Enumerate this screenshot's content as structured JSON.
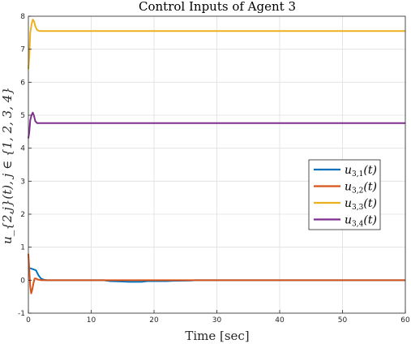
{
  "chart_data": {
    "type": "line",
    "title": "Control Inputs of Agent 3",
    "xlabel": "Time [sec]",
    "ylabel": "u_{2,j}(t), j ∈ {1, 2, 3, 4}",
    "xlim": [
      0,
      60
    ],
    "ylim": [
      -1,
      8
    ],
    "xticks": [
      0,
      10,
      20,
      30,
      40,
      50,
      60
    ],
    "yticks": [
      -1,
      0,
      1,
      2,
      3,
      4,
      5,
      6,
      7,
      8
    ],
    "xtick_labels": [
      "0",
      "10",
      "20",
      "30",
      "40",
      "50",
      "60"
    ],
    "ytick_labels": [
      "-1",
      "0",
      "1",
      "2",
      "3",
      "4",
      "5",
      "6",
      "7",
      "8"
    ],
    "grid": true,
    "legend_position": "center-right",
    "series": [
      {
        "name": "u_{3,1}(t)",
        "legend_label": "u3,1(t)",
        "color": "#0072BD",
        "x": [
          0,
          0.3,
          0.8,
          1.2,
          1.6,
          2.0,
          2.5,
          3,
          6,
          10,
          12,
          13,
          15,
          16,
          18,
          19,
          22,
          23,
          26,
          26.5,
          30,
          40,
          50,
          60
        ],
        "y": [
          0.38,
          0.36,
          0.33,
          0.3,
          0.15,
          0.05,
          0.01,
          0.0,
          0.0,
          0.0,
          0.0,
          -0.03,
          -0.04,
          -0.05,
          -0.05,
          -0.03,
          -0.03,
          -0.02,
          -0.01,
          0.0,
          0.0,
          0.0,
          0.0,
          0.0
        ]
      },
      {
        "name": "u_{3,2}(t)",
        "legend_label": "u3,2(t)",
        "color": "#D95319",
        "x": [
          0,
          0.15,
          0.3,
          0.45,
          0.6,
          0.8,
          1.0,
          1.2,
          1.5,
          2.0,
          3,
          60
        ],
        "y": [
          0.8,
          0.3,
          -0.2,
          -0.4,
          -0.3,
          -0.1,
          0.05,
          0.05,
          0.02,
          0.0,
          0.0,
          0.0
        ]
      },
      {
        "name": "u_{3,3}(t)",
        "legend_label": "u3,3(t)",
        "color": "#EDB120",
        "x": [
          0,
          0.15,
          0.3,
          0.5,
          0.7,
          0.9,
          1.1,
          1.4,
          1.8,
          2.2,
          3,
          60
        ],
        "y": [
          6.4,
          6.8,
          7.5,
          7.75,
          7.9,
          7.85,
          7.7,
          7.58,
          7.55,
          7.55,
          7.55,
          7.55
        ]
      },
      {
        "name": "u_{3,4}(t)",
        "legend_label": "u3,4(t)",
        "color": "#7E2F8E",
        "x": [
          0,
          0.15,
          0.3,
          0.5,
          0.7,
          0.9,
          1.1,
          1.4,
          1.8,
          2.2,
          3,
          60
        ],
        "y": [
          4.3,
          4.5,
          4.85,
          5.0,
          5.08,
          4.98,
          4.82,
          4.76,
          4.76,
          4.76,
          4.76,
          4.76
        ]
      }
    ]
  }
}
